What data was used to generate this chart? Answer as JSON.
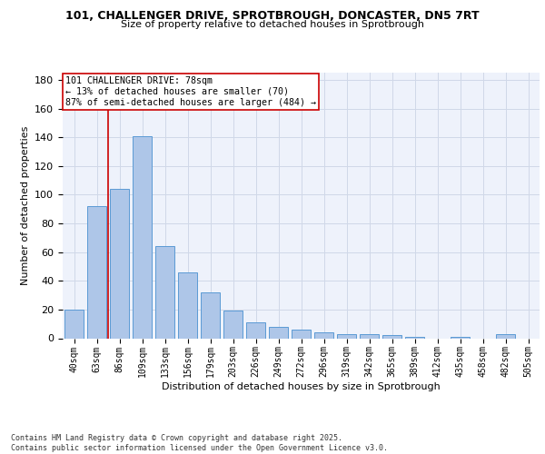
{
  "title_line1": "101, CHALLENGER DRIVE, SPROTBROUGH, DONCASTER, DN5 7RT",
  "title_line2": "Size of property relative to detached houses in Sprotbrough",
  "xlabel": "Distribution of detached houses by size in Sprotbrough",
  "ylabel": "Number of detached properties",
  "bar_labels": [
    "40sqm",
    "63sqm",
    "86sqm",
    "109sqm",
    "133sqm",
    "156sqm",
    "179sqm",
    "203sqm",
    "226sqm",
    "249sqm",
    "272sqm",
    "296sqm",
    "319sqm",
    "342sqm",
    "365sqm",
    "389sqm",
    "412sqm",
    "435sqm",
    "458sqm",
    "482sqm",
    "505sqm"
  ],
  "bar_values": [
    20,
    92,
    104,
    141,
    64,
    46,
    32,
    19,
    11,
    8,
    6,
    4,
    3,
    3,
    2,
    1,
    0,
    1,
    0,
    3,
    0
  ],
  "bar_color": "#aec6e8",
  "bar_edge_color": "#5b9bd5",
  "grid_color": "#d0d8e8",
  "bg_color": "#eef2fb",
  "annotation_text": "101 CHALLENGER DRIVE: 78sqm\n← 13% of detached houses are smaller (70)\n87% of semi-detached houses are larger (484) →",
  "vline_color": "#cc0000",
  "annotation_box_color": "#cc0000",
  "footer_text": "Contains HM Land Registry data © Crown copyright and database right 2025.\nContains public sector information licensed under the Open Government Licence v3.0.",
  "ylim": [
    0,
    185
  ],
  "yticks": [
    0,
    20,
    40,
    60,
    80,
    100,
    120,
    140,
    160,
    180
  ]
}
